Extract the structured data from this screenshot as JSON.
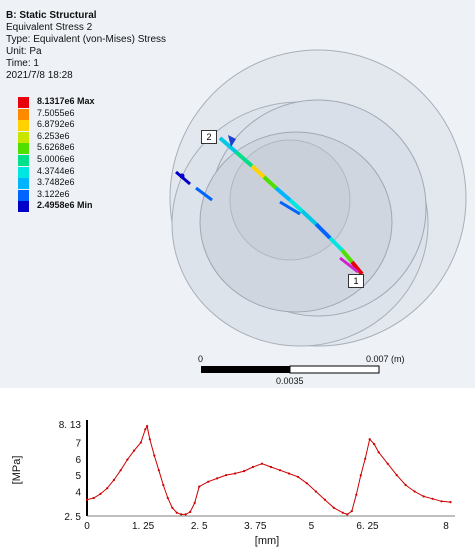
{
  "header": {
    "title": "B: Static Structural",
    "result": "Equivalent Stress 2",
    "type": "Type: Equivalent (von-Mises) Stress",
    "unit": "Unit: Pa",
    "time": "Time: 1",
    "date": "2021/7/8 18:28"
  },
  "legend": {
    "entries": [
      {
        "label": "8.1317e6 Max",
        "color": "#e8000b",
        "bold": true
      },
      {
        "label": "7.5055e6",
        "color": "#ff8a00",
        "bold": false
      },
      {
        "label": "6.8792e6",
        "color": "#ffd200",
        "bold": false
      },
      {
        "label": "6.253e6",
        "color": "#c8e600",
        "bold": false
      },
      {
        "label": "5.6268e6",
        "color": "#4fe000",
        "bold": false
      },
      {
        "label": "5.0006e6",
        "color": "#00e08a",
        "bold": false
      },
      {
        "label": "4.3744e6",
        "color": "#00e6e0",
        "bold": false
      },
      {
        "label": "3.7482e6",
        "color": "#00b4ff",
        "bold": false
      },
      {
        "label": "3.122e6",
        "color": "#0064ff",
        "bold": false
      },
      {
        "label": "2.4958e6 Min",
        "color": "#0000c8",
        "bold": true
      }
    ]
  },
  "probes": {
    "start": "2",
    "end": "1"
  },
  "scalebar": {
    "zero": "0",
    "max": "0.007 (m)",
    "mid": "0.0035"
  },
  "chart_data": {
    "type": "line",
    "title": "",
    "xlabel": "[mm]",
    "ylabel": "[MPa]",
    "xlim": [
      0,
      8.2
    ],
    "ylim": [
      2.5,
      8.13
    ],
    "xticks": [
      0,
      1.25,
      2.5,
      3.75,
      5,
      6.25,
      8
    ],
    "xtick_labels": [
      "0",
      "1. 25",
      "2. 5",
      "3. 75",
      "5",
      "6. 25",
      "8"
    ],
    "yticks": [
      2.5,
      4,
      5,
      6,
      7,
      8.13
    ],
    "ytick_labels": [
      "2. 5",
      "4",
      "5",
      "6",
      "7",
      "8. 13"
    ],
    "series": [
      {
        "color": "#cc0000",
        "x": [
          0,
          0.15,
          0.3,
          0.45,
          0.6,
          0.75,
          0.9,
          1.05,
          1.2,
          1.3,
          1.34,
          1.4,
          1.5,
          1.6,
          1.7,
          1.8,
          1.9,
          2.0,
          2.1,
          2.2,
          2.3,
          2.4,
          2.5,
          2.7,
          2.9,
          3.1,
          3.3,
          3.5,
          3.7,
          3.9,
          4.1,
          4.3,
          4.5,
          4.7,
          4.9,
          5.1,
          5.3,
          5.5,
          5.7,
          5.8,
          5.9,
          6.0,
          6.1,
          6.2,
          6.3,
          6.4,
          6.5,
          6.7,
          6.9,
          7.1,
          7.3,
          7.5,
          7.7,
          7.9,
          8.1
        ],
        "y": [
          3.5,
          3.6,
          3.85,
          4.2,
          4.7,
          5.3,
          5.95,
          6.5,
          7.0,
          7.8,
          8.0,
          7.2,
          6.2,
          5.3,
          4.4,
          3.6,
          3.0,
          2.7,
          2.6,
          2.6,
          2.75,
          3.3,
          4.3,
          4.6,
          4.8,
          5.0,
          5.1,
          5.25,
          5.5,
          5.7,
          5.5,
          5.3,
          5.1,
          4.9,
          4.5,
          4.0,
          3.5,
          3.0,
          2.7,
          2.6,
          2.8,
          3.8,
          5.0,
          6.0,
          7.2,
          6.9,
          6.4,
          5.7,
          5.0,
          4.4,
          4.0,
          3.7,
          3.55,
          3.4,
          3.35
        ]
      }
    ],
    "grid": false
  }
}
